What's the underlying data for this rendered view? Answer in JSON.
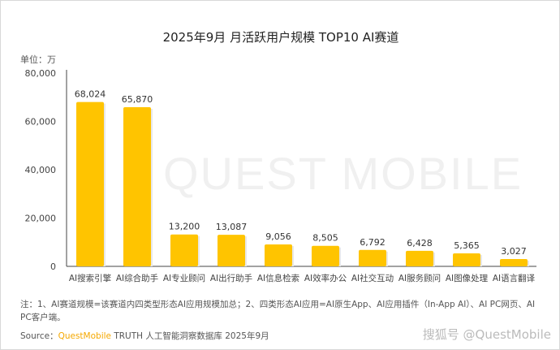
{
  "chart_data": {
    "type": "bar",
    "title": "2025年9月 月活跃用户规模 TOP10 AI赛道",
    "ylabel": "单位：万",
    "ylim": [
      0,
      80000
    ],
    "yticks": [
      "0",
      "20,000",
      "40,000",
      "60,000",
      "80,000"
    ],
    "ytick_values": [
      0,
      20000,
      40000,
      60000,
      80000
    ],
    "categories": [
      "AI搜索引擎",
      "AI综合助手",
      "AI专业顾问",
      "AI出行助手",
      "AI信息检索",
      "AI效率办公",
      "AI社交互动",
      "AI服务顾问",
      "AI图像处理",
      "AI语言翻译"
    ],
    "values": [
      68024,
      65870,
      13200,
      13087,
      9056,
      8505,
      6792,
      6428,
      5365,
      3027
    ],
    "labels": [
      "68,024",
      "65,870",
      "13,200",
      "13,087",
      "9,056",
      "8,505",
      "6,792",
      "6,428",
      "5,365",
      "3,027"
    ],
    "bar_color": "#ffc400"
  },
  "note": "注：1、AI赛道规模=该赛道内四类型形态AI应用规模加总；2、四类形态AI应用=AI原生App、AI应用插件（In-App AI）、AI PC网页、AI PC客户端。",
  "source": {
    "prefix": "Source：",
    "brand": "QuestMobile",
    "rest": " TRUTH 人工智能洞察数据库 2025年9月"
  },
  "watermark": "QUEST MOBILE",
  "corner_watermark": "搜狐号 @QuestMobile"
}
